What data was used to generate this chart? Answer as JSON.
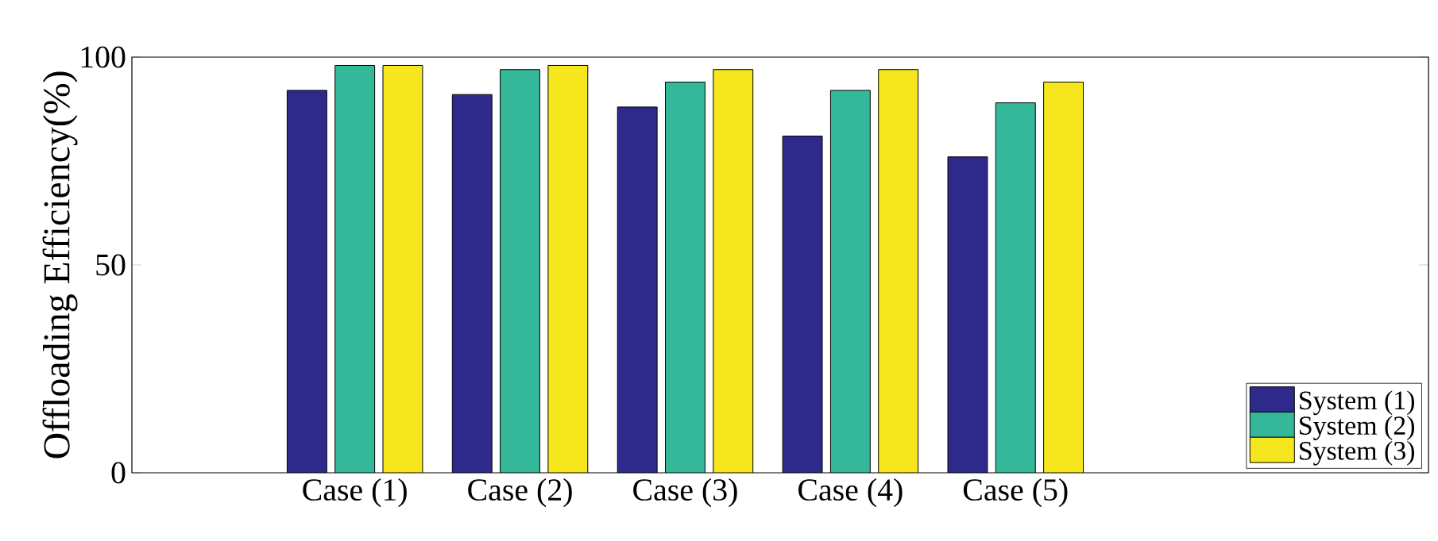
{
  "chart_data": {
    "type": "bar",
    "ylabel": "Offloading Efficiency(%)",
    "categories": [
      "Case (1)",
      "Case (2)",
      "Case (3)",
      "Case (4)",
      "Case (5)"
    ],
    "series": [
      {
        "name": "System (1)",
        "color": "#2e2a8c",
        "values": [
          92,
          91,
          88,
          81,
          76
        ]
      },
      {
        "name": "System (2)",
        "color": "#35b89a",
        "values": [
          98,
          97,
          94,
          92,
          89
        ]
      },
      {
        "name": "System (3)",
        "color": "#f5e61e",
        "values": [
          98,
          98,
          97,
          97,
          94
        ]
      }
    ],
    "ylim": [
      0,
      100
    ],
    "yticks": [
      0,
      50,
      100
    ],
    "legend": "bottom right",
    "grid": false
  }
}
